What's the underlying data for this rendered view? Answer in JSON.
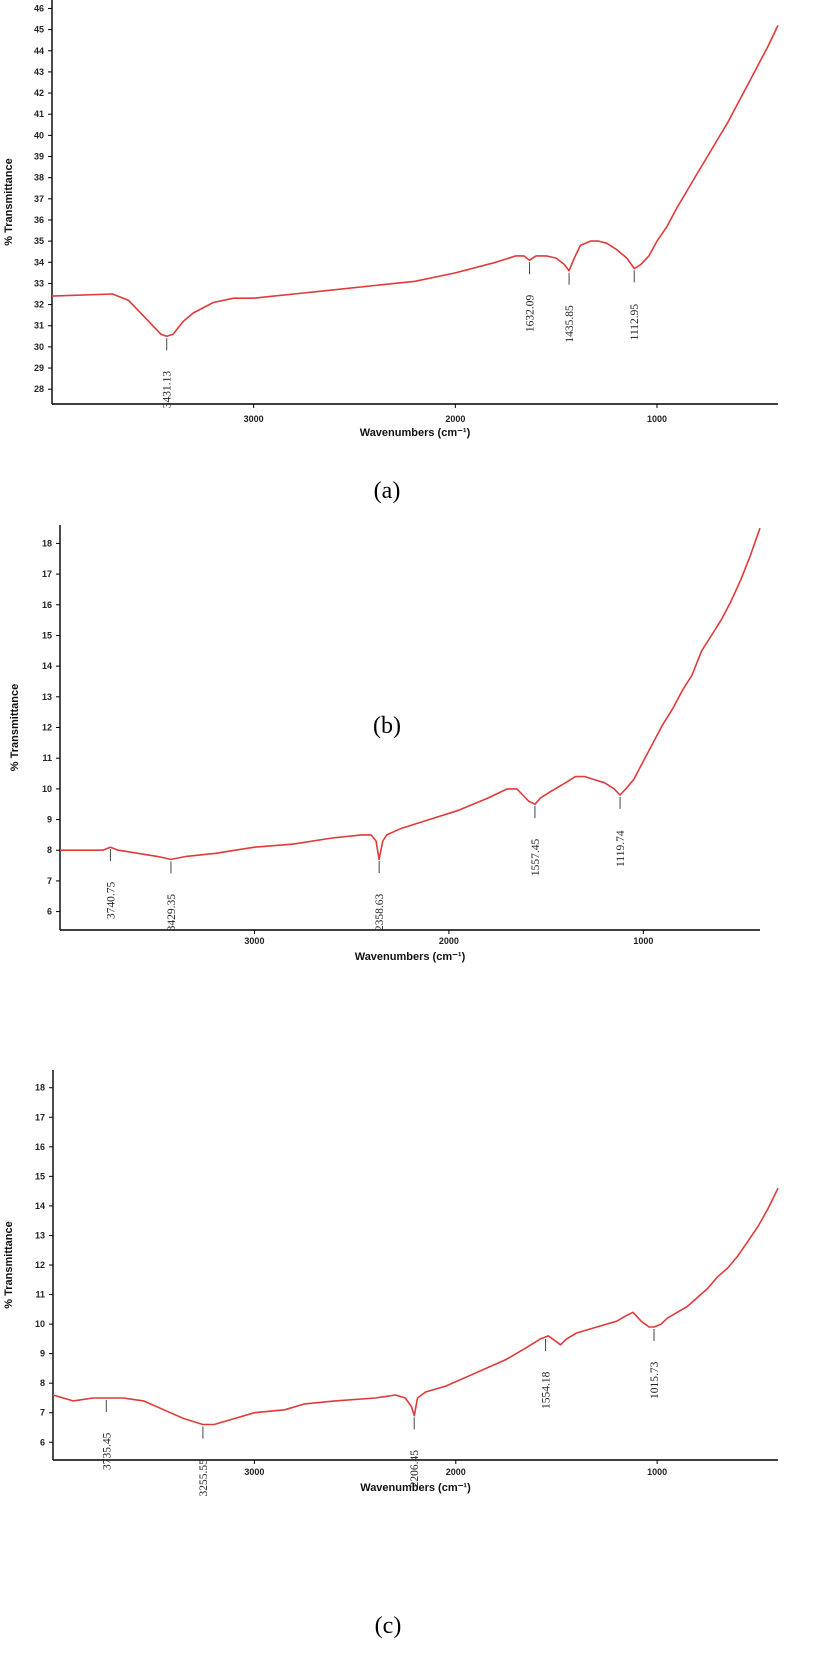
{
  "chart_data": [
    {
      "type": "line",
      "panel_label": "(a)",
      "xlabel": "Wavenumbers (cm⁻¹)",
      "ylabel": "% Transmittance",
      "x_reversed": true,
      "xlim": [
        4000,
        400
      ],
      "ylim": [
        27.3,
        46.4
      ],
      "x_ticks": [
        3000,
        2000,
        1000
      ],
      "y_ticks": [
        28,
        29,
        30,
        31,
        32,
        33,
        34,
        35,
        36,
        37,
        38,
        39,
        40,
        41,
        42,
        43,
        44,
        45,
        46
      ],
      "grid": false,
      "line_color": "#e03a3a",
      "series": [
        {
          "x": [
            4000,
            3700,
            3620,
            3550,
            3500,
            3460,
            3431,
            3400,
            3350,
            3300,
            3200,
            3100,
            3000,
            2900,
            2800,
            2600,
            2400,
            2200,
            2000,
            1800,
            1700,
            1660,
            1632,
            1600,
            1550,
            1500,
            1460,
            1436,
            1410,
            1380,
            1330,
            1290,
            1250,
            1200,
            1150,
            1112,
            1080,
            1040,
            1000,
            950,
            900,
            850,
            800,
            750,
            700,
            650,
            600,
            550,
            500,
            450,
            400
          ],
          "y": [
            32.4,
            32.5,
            32.2,
            31.5,
            31.0,
            30.6,
            30.5,
            30.6,
            31.2,
            31.6,
            32.1,
            32.3,
            32.3,
            32.4,
            32.5,
            32.7,
            32.9,
            33.1,
            33.5,
            34.0,
            34.3,
            34.3,
            34.1,
            34.3,
            34.3,
            34.2,
            33.9,
            33.6,
            34.2,
            34.8,
            35.0,
            35.0,
            34.9,
            34.6,
            34.2,
            33.7,
            33.9,
            34.3,
            35.0,
            35.7,
            36.6,
            37.4,
            38.2,
            39.0,
            39.8,
            40.6,
            41.5,
            42.4,
            43.3,
            44.2,
            45.2
          ]
        }
      ],
      "annotations": [
        {
          "x": 3431.13,
          "label": "3431.13"
        },
        {
          "x": 1632.09,
          "label": "1632.09"
        },
        {
          "x": 1435.85,
          "label": "1435.85"
        },
        {
          "x": 1112.95,
          "label": "1112.95"
        }
      ]
    },
    {
      "type": "line",
      "panel_label": "(b)",
      "xlabel": "Wavenumbers (cm⁻¹)",
      "ylabel": "% Transmittance",
      "x_reversed": true,
      "xlim": [
        4000,
        400
      ],
      "ylim": [
        5.4,
        18.6
      ],
      "x_ticks": [
        3000,
        2000,
        1000
      ],
      "y_ticks": [
        6,
        7,
        8,
        9,
        10,
        11,
        12,
        13,
        14,
        15,
        16,
        17,
        18
      ],
      "grid": false,
      "line_color": "#e03a3a",
      "series": [
        {
          "x": [
            4000,
            3850,
            3780,
            3741,
            3700,
            3600,
            3500,
            3429,
            3350,
            3200,
            3000,
            2800,
            2600,
            2450,
            2400,
            2375,
            2359,
            2340,
            2320,
            2250,
            2100,
            1950,
            1800,
            1700,
            1650,
            1620,
            1590,
            1557,
            1530,
            1480,
            1400,
            1350,
            1300,
            1250,
            1200,
            1150,
            1120,
            1090,
            1050,
            1000,
            950,
            900,
            850,
            800,
            750,
            700,
            650,
            600,
            550,
            500,
            450,
            400
          ],
          "y": [
            8.0,
            8.0,
            8.0,
            8.1,
            8.0,
            7.9,
            7.8,
            7.7,
            7.8,
            7.9,
            8.1,
            8.2,
            8.4,
            8.5,
            8.5,
            8.3,
            7.7,
            8.3,
            8.5,
            8.7,
            9.0,
            9.3,
            9.7,
            10.0,
            10.0,
            9.8,
            9.6,
            9.5,
            9.7,
            9.9,
            10.2,
            10.4,
            10.4,
            10.3,
            10.2,
            10.0,
            9.8,
            10.0,
            10.3,
            10.9,
            11.5,
            12.1,
            12.6,
            13.2,
            13.7,
            14.5,
            15.0,
            15.5,
            16.1,
            16.8,
            17.6,
            18.5
          ]
        }
      ],
      "annotations": [
        {
          "x": 3740.75,
          "label": "3740.75"
        },
        {
          "x": 3429.35,
          "label": "3429.35"
        },
        {
          "x": 2358.63,
          "label": "2358.63"
        },
        {
          "x": 1557.45,
          "label": "1557.45"
        },
        {
          "x": 1119.74,
          "label": "1119.74"
        }
      ]
    },
    {
      "type": "line",
      "panel_label": "(c)",
      "xlabel": "Wavenumbers (cm⁻¹)",
      "ylabel": "% Transmittance",
      "x_reversed": true,
      "xlim": [
        4000,
        400
      ],
      "ylim": [
        5.4,
        18.6
      ],
      "x_ticks": [
        3000,
        2000,
        1000
      ],
      "y_ticks": [
        6,
        7,
        8,
        9,
        10,
        11,
        12,
        13,
        14,
        15,
        16,
        17,
        18
      ],
      "grid": false,
      "line_color": "#e03a3a",
      "series": [
        {
          "x": [
            4000,
            3900,
            3800,
            3736,
            3650,
            3550,
            3450,
            3350,
            3256,
            3200,
            3100,
            3000,
            2850,
            2750,
            2600,
            2400,
            2300,
            2250,
            2220,
            2206,
            2190,
            2150,
            2050,
            1950,
            1850,
            1750,
            1650,
            1580,
            1540,
            1500,
            1480,
            1450,
            1400,
            1300,
            1200,
            1150,
            1120,
            1080,
            1040,
            1016,
            980,
            950,
            900,
            850,
            800,
            750,
            700,
            650,
            600,
            550,
            500,
            450,
            400
          ],
          "y": [
            7.6,
            7.4,
            7.5,
            7.5,
            7.5,
            7.4,
            7.1,
            6.8,
            6.6,
            6.6,
            6.8,
            7.0,
            7.1,
            7.3,
            7.4,
            7.5,
            7.6,
            7.5,
            7.2,
            6.9,
            7.5,
            7.7,
            7.9,
            8.2,
            8.5,
            8.8,
            9.2,
            9.5,
            9.6,
            9.4,
            9.3,
            9.5,
            9.7,
            9.9,
            10.1,
            10.3,
            10.4,
            10.1,
            9.9,
            9.9,
            10.0,
            10.2,
            10.4,
            10.6,
            10.9,
            11.2,
            11.6,
            11.9,
            12.3,
            12.8,
            13.3,
            13.9,
            14.6
          ]
        }
      ],
      "annotations": [
        {
          "x": 3735.45,
          "label": "3735.45"
        },
        {
          "x": 3255.55,
          "label": "3255.55"
        },
        {
          "x": 2206.45,
          "label": "2206.45"
        },
        {
          "x": 1554.18,
          "label": "1554.18"
        },
        {
          "x": 1015.73,
          "label": "1015.73"
        }
      ]
    }
  ]
}
